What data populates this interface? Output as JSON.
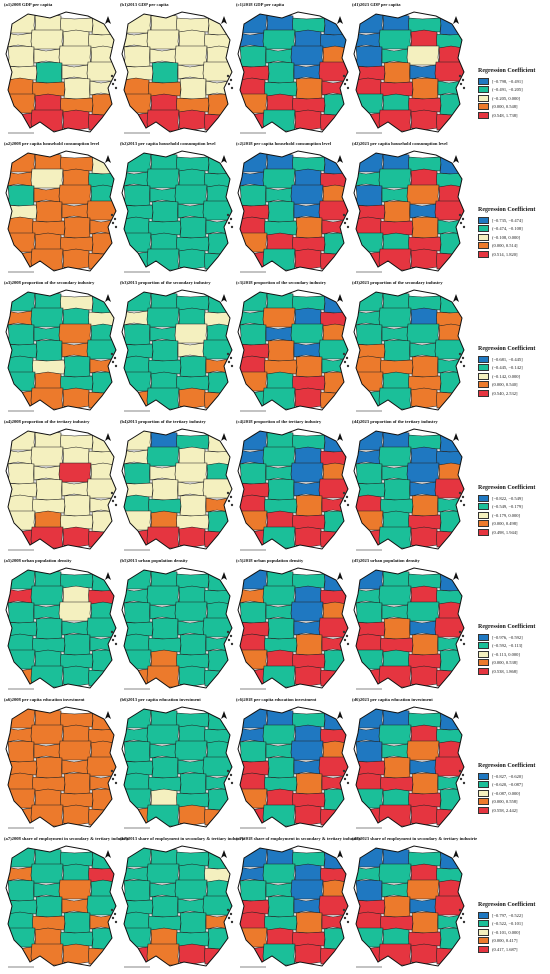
{
  "colors": {
    "class1": "#1f78c1",
    "class2": "#1bbf99",
    "class3": "#f4f0bf",
    "class4": "#ec7a2c",
    "class5": "#e53540"
  },
  "scale_label": "0   100 200 km",
  "rows": [
    {
      "panels": [
        {
          "title": "(a1)2008 GDP per capita",
          "pattern": [
            3,
            3,
            3,
            3,
            3,
            3,
            3,
            3,
            3,
            3,
            3,
            3,
            3,
            2,
            3,
            3,
            4,
            4,
            3,
            3,
            4,
            5,
            4,
            4,
            5,
            5,
            5,
            5
          ]
        },
        {
          "title": "(b1)2013 GDP per capita",
          "pattern": [
            3,
            3,
            3,
            3,
            3,
            3,
            3,
            3,
            3,
            3,
            3,
            3,
            3,
            2,
            3,
            3,
            4,
            4,
            3,
            3,
            4,
            5,
            4,
            4,
            5,
            5,
            5,
            5
          ]
        },
        {
          "title": "(c1)2018 GDP per capita",
          "pattern": [
            1,
            1,
            2,
            1,
            1,
            2,
            1,
            1,
            2,
            2,
            1,
            4,
            5,
            2,
            1,
            5,
            5,
            2,
            4,
            5,
            4,
            5,
            5,
            2,
            5,
            2,
            5,
            5
          ]
        },
        {
          "title": "(d1)2023 GDP per capita",
          "pattern": [
            1,
            1,
            2,
            1,
            1,
            2,
            5,
            2,
            1,
            2,
            3,
            5,
            5,
            4,
            1,
            5,
            5,
            5,
            4,
            2,
            2,
            2,
            5,
            2,
            5,
            5,
            5,
            5
          ]
        }
      ],
      "legend": {
        "title": "Regression Coefficient",
        "items": [
          "[−0.798, −0.491]",
          "(−0.491, −0.205]",
          "(−0.205, 0.000]",
          "(0.000, 0.548]",
          "(0.548, 1.738]"
        ]
      }
    },
    {
      "panels": [
        {
          "title": "(a2)2008 per capita household consumption level",
          "pattern": [
            4,
            4,
            4,
            3,
            4,
            3,
            4,
            2,
            2,
            4,
            4,
            2,
            3,
            4,
            4,
            4,
            4,
            4,
            4,
            4,
            4,
            4,
            4,
            4,
            4,
            4,
            4,
            4
          ]
        },
        {
          "title": "(b2)2013 per capita household consumption level",
          "pattern": [
            2,
            2,
            2,
            2,
            2,
            2,
            2,
            2,
            2,
            2,
            2,
            2,
            2,
            2,
            2,
            2,
            2,
            2,
            2,
            2,
            2,
            2,
            2,
            2,
            2,
            2,
            2,
            2
          ]
        },
        {
          "title": "(c2)2018 per capita household consumption level",
          "pattern": [
            1,
            1,
            2,
            1,
            1,
            2,
            1,
            5,
            2,
            2,
            1,
            4,
            5,
            2,
            1,
            5,
            5,
            2,
            4,
            5,
            4,
            5,
            5,
            2,
            5,
            2,
            5,
            5
          ]
        },
        {
          "title": "(d2)2023 per capita household consumption level",
          "pattern": [
            1,
            1,
            2,
            1,
            2,
            2,
            5,
            2,
            1,
            2,
            4,
            5,
            5,
            4,
            1,
            5,
            5,
            5,
            4,
            2,
            2,
            2,
            5,
            2,
            5,
            5,
            5,
            5
          ]
        }
      ],
      "legend": {
        "title": "Regression Coefficient",
        "items": [
          "[−0.735, −0.474]",
          "(−0.474, −0.108]",
          "(−0.108, 0.000]",
          "(0.000, 0.514]",
          "(0.514, 1.820]"
        ]
      }
    },
    {
      "panels": [
        {
          "title": "(a3)2008 proportion of the secondary industry",
          "pattern": [
            2,
            2,
            3,
            2,
            4,
            2,
            2,
            3,
            2,
            2,
            4,
            2,
            2,
            2,
            4,
            2,
            2,
            3,
            2,
            4,
            2,
            4,
            2,
            2,
            4,
            4,
            4,
            4
          ]
        },
        {
          "title": "(b3)2013 proportion of the secondary industry",
          "pattern": [
            2,
            2,
            2,
            2,
            3,
            2,
            2,
            3,
            2,
            2,
            3,
            2,
            2,
            2,
            3,
            2,
            2,
            2,
            2,
            4,
            2,
            2,
            2,
            2,
            4,
            2,
            4,
            4
          ]
        },
        {
          "title": "(c3)2018 proportion of the secondary industry",
          "pattern": [
            2,
            2,
            2,
            1,
            2,
            4,
            1,
            5,
            2,
            1,
            2,
            4,
            5,
            4,
            1,
            2,
            5,
            4,
            4,
            2,
            4,
            2,
            5,
            4,
            2,
            2,
            5,
            4
          ]
        },
        {
          "title": "(d3)2023 proportion of the secondary industry",
          "pattern": [
            2,
            2,
            2,
            2,
            2,
            2,
            1,
            4,
            2,
            2,
            2,
            4,
            4,
            2,
            2,
            2,
            4,
            4,
            4,
            2,
            4,
            2,
            4,
            2,
            2,
            2,
            4,
            4
          ]
        }
      ],
      "legend": {
        "title": "Regression Coefficient",
        "items": [
          "[−0.681, −0.445]",
          "(−0.445, −0.142]",
          "(−0.142, 0.000]",
          "(0.000, 0.540]",
          "(0.540, 2.532]"
        ]
      }
    },
    {
      "panels": [
        {
          "title": "(a4)2008 proportion of the tertiary industry",
          "pattern": [
            3,
            3,
            3,
            3,
            3,
            3,
            3,
            3,
            3,
            3,
            5,
            3,
            3,
            3,
            3,
            3,
            3,
            3,
            3,
            3,
            3,
            4,
            3,
            3,
            5,
            5,
            5,
            5
          ]
        },
        {
          "title": "(b4)2013 proportion of the tertiary industry",
          "pattern": [
            3,
            1,
            2,
            3,
            3,
            2,
            3,
            3,
            2,
            3,
            3,
            2,
            3,
            3,
            3,
            3,
            2,
            2,
            3,
            4,
            3,
            4,
            3,
            2,
            5,
            5,
            5,
            5
          ]
        },
        {
          "title": "(c4)2018 proportion of the tertiary industry",
          "pattern": [
            1,
            2,
            2,
            1,
            1,
            2,
            1,
            5,
            2,
            2,
            1,
            4,
            5,
            2,
            1,
            5,
            5,
            2,
            4,
            5,
            4,
            5,
            5,
            2,
            5,
            2,
            5,
            5
          ]
        },
        {
          "title": "(d4)2023 proportion of the tertiary industry",
          "pattern": [
            1,
            1,
            2,
            1,
            1,
            2,
            1,
            1,
            2,
            2,
            1,
            4,
            2,
            2,
            1,
            5,
            5,
            2,
            4,
            2,
            4,
            2,
            5,
            2,
            5,
            2,
            5,
            5
          ]
        }
      ],
      "legend": {
        "title": "Regression Coefficient",
        "items": [
          "[−0.822, −0.549]",
          "(−0.549, −0.179]",
          "(−0.179, 0.000]",
          "(0.000, 0.498]",
          "(0.498, 1.944]"
        ]
      }
    },
    {
      "panels": [
        {
          "title": "(a5)2008 urban population density",
          "pattern": [
            2,
            2,
            2,
            2,
            5,
            2,
            3,
            5,
            2,
            2,
            3,
            2,
            2,
            2,
            2,
            2,
            2,
            2,
            2,
            2,
            2,
            2,
            2,
            2,
            4,
            2,
            2,
            2
          ]
        },
        {
          "title": "(b5)2013 urban population density",
          "pattern": [
            2,
            2,
            2,
            2,
            2,
            2,
            2,
            2,
            2,
            2,
            2,
            2,
            2,
            2,
            2,
            2,
            2,
            2,
            2,
            2,
            2,
            4,
            2,
            2,
            4,
            4,
            2,
            2
          ]
        },
        {
          "title": "(c5)2018 urban population density",
          "pattern": [
            1,
            2,
            2,
            1,
            4,
            2,
            1,
            5,
            2,
            2,
            1,
            4,
            5,
            2,
            1,
            5,
            5,
            2,
            4,
            5,
            4,
            5,
            5,
            2,
            5,
            2,
            5,
            5
          ]
        },
        {
          "title": "(d5)2023 urban population density",
          "pattern": [
            1,
            2,
            2,
            1,
            2,
            2,
            5,
            2,
            2,
            2,
            2,
            5,
            5,
            4,
            1,
            5,
            5,
            5,
            4,
            2,
            2,
            2,
            5,
            2,
            5,
            5,
            5,
            5
          ]
        }
      ],
      "legend": {
        "title": "Regression Coefficient",
        "items": [
          "[−0.976, −0.592]",
          "(−0.592, −0.113]",
          "(−0.113, 0.000]",
          "(0.000, 0.538]",
          "(0.538, 1.868]"
        ]
      }
    },
    {
      "panels": [
        {
          "title": "(a6)2008 per capita education investment",
          "pattern": [
            4,
            4,
            4,
            4,
            4,
            4,
            4,
            4,
            4,
            4,
            4,
            4,
            4,
            4,
            4,
            4,
            4,
            4,
            4,
            4,
            4,
            4,
            4,
            4,
            4,
            4,
            4,
            4
          ]
        },
        {
          "title": "(b6)2013 per capita education investment",
          "pattern": [
            2,
            2,
            2,
            2,
            2,
            2,
            2,
            2,
            2,
            2,
            2,
            2,
            2,
            2,
            2,
            2,
            2,
            2,
            2,
            2,
            2,
            3,
            2,
            2,
            4,
            2,
            4,
            4
          ]
        },
        {
          "title": "(c6)2018 per capita education investment",
          "pattern": [
            1,
            1,
            2,
            1,
            1,
            2,
            1,
            5,
            2,
            2,
            1,
            4,
            5,
            2,
            1,
            5,
            5,
            2,
            4,
            5,
            4,
            5,
            5,
            2,
            5,
            2,
            5,
            5
          ]
        },
        {
          "title": "(d6)2023 per capita education investment",
          "pattern": [
            1,
            1,
            2,
            1,
            1,
            2,
            5,
            2,
            1,
            2,
            4,
            5,
            5,
            4,
            1,
            5,
            5,
            5,
            4,
            2,
            2,
            2,
            5,
            2,
            5,
            5,
            5,
            5
          ]
        }
      ],
      "legend": {
        "title": "Regression Coefficient",
        "items": [
          "[−0.827, −0.620]",
          "(−0.620, −0.087]",
          "(−0.087, 0.000]",
          "(0.000, 0.558]",
          "(0.558, 2.442]"
        ]
      }
    },
    {
      "panels": [
        {
          "title": "(a7)2008 share of employment in secondary & tertiary industries",
          "pattern": [
            2,
            2,
            2,
            2,
            4,
            2,
            2,
            5,
            2,
            2,
            4,
            2,
            2,
            2,
            4,
            2,
            2,
            4,
            2,
            4,
            2,
            4,
            2,
            2,
            4,
            4,
            4,
            4
          ]
        },
        {
          "title": "(b7)2013 share of employment in secondary & tertiary industries",
          "pattern": [
            2,
            2,
            2,
            2,
            2,
            2,
            2,
            3,
            2,
            2,
            2,
            2,
            2,
            2,
            2,
            2,
            2,
            2,
            2,
            4,
            2,
            4,
            2,
            2,
            5,
            4,
            5,
            5
          ]
        },
        {
          "title": "(c7)2018 share of employment in secondary & tertiary industries",
          "pattern": [
            1,
            1,
            2,
            1,
            1,
            2,
            1,
            5,
            2,
            2,
            1,
            4,
            5,
            2,
            1,
            5,
            5,
            2,
            4,
            5,
            4,
            5,
            5,
            2,
            5,
            2,
            5,
            5
          ]
        },
        {
          "title": "(d7)2023 share of employment in secondary & tertiary industries",
          "pattern": [
            1,
            1,
            2,
            1,
            2,
            2,
            5,
            2,
            1,
            2,
            4,
            5,
            5,
            4,
            1,
            5,
            5,
            5,
            4,
            2,
            2,
            2,
            5,
            2,
            5,
            5,
            5,
            5
          ]
        }
      ],
      "legend": {
        "title": "Regression Coefficient",
        "items": [
          "[−0.797, −0.522]",
          "(−0.522, −0.101]",
          "(−0.101, 0.000]",
          "(0.000, 0.417]",
          "(0.417, 1.687]"
        ]
      }
    }
  ]
}
